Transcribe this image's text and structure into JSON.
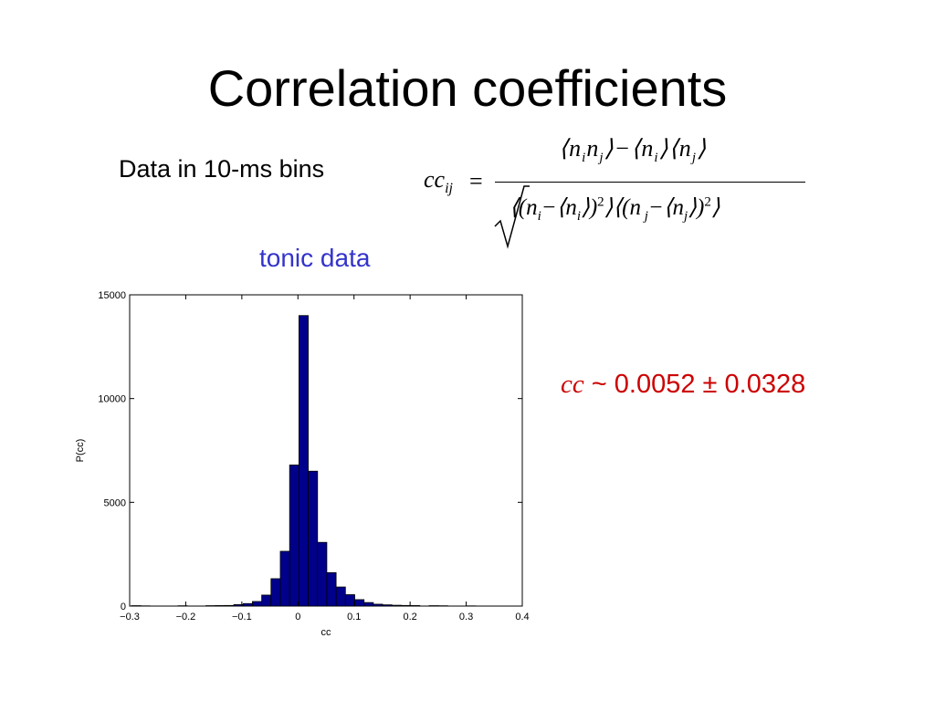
{
  "slide": {
    "title": "Correlation coefficients",
    "data_note": "Data in 10-ms bins"
  },
  "formula": {
    "lhs": "cc",
    "lhs_sub": "ij",
    "eq": "=",
    "numerator": "⟨n_i n_j⟩ − ⟨n_i⟩⟨n_j⟩",
    "denominator": "√( ⟨(n_i − ⟨n_i⟩)²⟩ ⟨(n_j − ⟨n_j⟩)²⟩ )"
  },
  "annotation": {
    "symbol": "cc",
    "text": " ~ 0.0052 ± 0.0328",
    "color": "#cc0000"
  },
  "chart_data": {
    "type": "bar",
    "title": "tonic data",
    "xlabel": "cc",
    "ylabel": "P(cc)",
    "xlim": [
      -0.3,
      0.4
    ],
    "ylim": [
      0,
      15000
    ],
    "x_ticks": [
      -0.3,
      -0.2,
      -0.1,
      0,
      0.1,
      0.2,
      0.3,
      0.4
    ],
    "x_tick_labels": [
      "−0.3",
      "−0.2",
      "−0.1",
      "0",
      "0.1",
      "0.2",
      "0.3",
      "0.4"
    ],
    "y_ticks": [
      0,
      5000,
      10000,
      15000
    ],
    "y_tick_labels": [
      "0",
      "5000",
      "10000",
      "15000"
    ],
    "bar_color": "#00008b",
    "title_color": "#3333cc",
    "bin_width": 0.01658,
    "bins": [
      {
        "x": -0.2884,
        "y": 20
      },
      {
        "x": -0.2718,
        "y": 10
      },
      {
        "x": -0.2055,
        "y": 15
      },
      {
        "x": -0.1558,
        "y": 20
      },
      {
        "x": -0.1392,
        "y": 25
      },
      {
        "x": -0.1226,
        "y": 30
      },
      {
        "x": -0.106,
        "y": 70
      },
      {
        "x": -0.0894,
        "y": 120
      },
      {
        "x": -0.0729,
        "y": 220
      },
      {
        "x": -0.0563,
        "y": 530
      },
      {
        "x": -0.0397,
        "y": 1320
      },
      {
        "x": -0.0231,
        "y": 2640
      },
      {
        "x": -0.0065,
        "y": 6800
      },
      {
        "x": 0.0101,
        "y": 14000
      },
      {
        "x": 0.0267,
        "y": 6500
      },
      {
        "x": 0.0432,
        "y": 3070
      },
      {
        "x": 0.0598,
        "y": 1610
      },
      {
        "x": 0.0764,
        "y": 920
      },
      {
        "x": 0.093,
        "y": 550
      },
      {
        "x": 0.1096,
        "y": 310
      },
      {
        "x": 0.1262,
        "y": 170
      },
      {
        "x": 0.1427,
        "y": 90
      },
      {
        "x": 0.1593,
        "y": 60
      },
      {
        "x": 0.1759,
        "y": 40
      },
      {
        "x": 0.1925,
        "y": 30
      },
      {
        "x": 0.2091,
        "y": 25
      },
      {
        "x": 0.2422,
        "y": 20
      },
      {
        "x": 0.2588,
        "y": 15
      },
      {
        "x": 0.3086,
        "y": 10
      }
    ]
  }
}
